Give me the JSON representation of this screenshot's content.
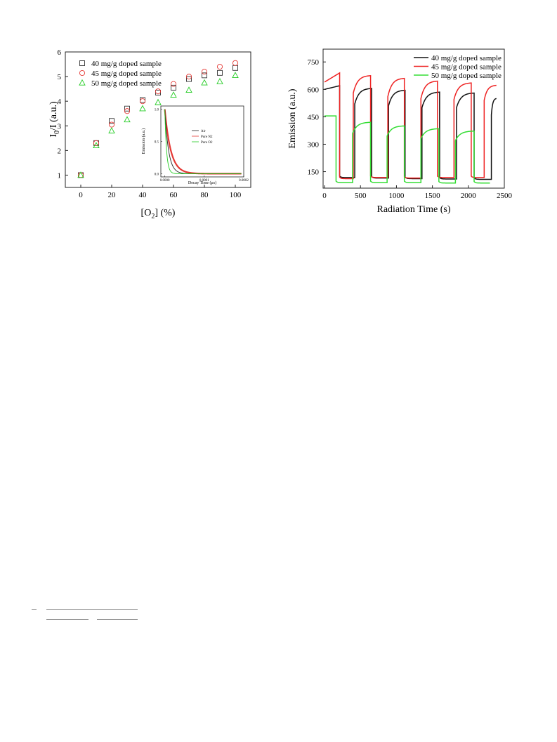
{
  "chart_data": [
    {
      "type": "scatter",
      "title": "",
      "xlabel": "[O2] (%)",
      "ylabel": "I0/I (a.u.)",
      "xlim": [
        -10,
        110
      ],
      "ylim": [
        0.5,
        6
      ],
      "x_ticks": [
        0,
        20,
        40,
        60,
        80,
        100
      ],
      "y_ticks": [
        1,
        2,
        3,
        4,
        5,
        6
      ],
      "legend_position": "top-left",
      "series": [
        {
          "name": "40 mg/g doped sample",
          "marker": "square",
          "color": "#333333",
          "x": [
            0,
            10,
            20,
            30,
            40,
            50,
            60,
            70,
            80,
            90,
            100
          ],
          "y": [
            1.0,
            2.3,
            3.2,
            3.7,
            4.05,
            4.35,
            4.55,
            4.9,
            5.05,
            5.15,
            5.35
          ]
        },
        {
          "name": "45 mg/g doped sample",
          "marker": "circle",
          "color": "#e53935",
          "x": [
            0,
            10,
            20,
            30,
            40,
            50,
            60,
            70,
            80,
            90,
            100
          ],
          "y": [
            1.0,
            2.3,
            3.05,
            3.6,
            4.0,
            4.4,
            4.7,
            5.0,
            5.2,
            5.4,
            5.55
          ]
        },
        {
          "name": "50 mg/g doped sample",
          "marker": "triangle",
          "color": "#22cc22",
          "x": [
            0,
            10,
            20,
            30,
            40,
            50,
            60,
            70,
            80,
            90,
            100
          ],
          "y": [
            1.0,
            2.2,
            2.8,
            3.25,
            3.7,
            3.95,
            4.25,
            4.45,
            4.75,
            4.8,
            5.05
          ]
        }
      ]
    },
    {
      "type": "line",
      "title": "",
      "xlabel": "Decay Time (μs)",
      "ylabel": "Emission (a.u.)",
      "inset": true,
      "xlim": [
        -1e-05,
        0.0002
      ],
      "ylim": [
        -0.05,
        1.05
      ],
      "x_ticks": [
        0.0,
        0.0001,
        0.0002
      ],
      "x_tick_labels": [
        "0.0000",
        "0.0001",
        "0.0002"
      ],
      "y_ticks": [
        0.0,
        0.5,
        1.0
      ],
      "y_tick_labels": [
        "0.0",
        "0.5",
        "1.0"
      ],
      "legend_position": "top-right",
      "series": [
        {
          "name": "Air",
          "color": "#222222",
          "tau": 9.5e-06
        },
        {
          "name": "Pure N2",
          "color": "#e53935",
          "tau": 1.5e-05
        },
        {
          "name": "Pure O2",
          "color": "#22cc22",
          "tau": 4.5e-06
        }
      ]
    },
    {
      "type": "line",
      "title": "",
      "xlabel": "Radiation Time (s)",
      "ylabel": "Emission (a.u.)",
      "xlim": [
        -20,
        2500
      ],
      "ylim": [
        60,
        820
      ],
      "x_ticks": [
        0,
        500,
        1000,
        1500,
        2000,
        2500
      ],
      "y_ticks": [
        150,
        300,
        450,
        600,
        750
      ],
      "legend_position": "top-right",
      "series": [
        {
          "name": "40 mg/g doped sample",
          "color": "#111111",
          "segments": [
            {
              "type": "high",
              "t0": 0,
              "t1": 210,
              "start": 600,
              "end": 620
            },
            {
              "type": "low",
              "t0": 210,
              "t1": 420,
              "level": 118
            },
            {
              "type": "rise",
              "t0": 420,
              "t1": 655,
              "start": 520,
              "end": 605
            },
            {
              "type": "low",
              "t0": 655,
              "t1": 890,
              "level": 115
            },
            {
              "type": "rise",
              "t0": 890,
              "t1": 1120,
              "start": 510,
              "end": 595
            },
            {
              "type": "low",
              "t0": 1120,
              "t1": 1355,
              "level": 112
            },
            {
              "type": "rise",
              "t0": 1355,
              "t1": 1600,
              "start": 500,
              "end": 585
            },
            {
              "type": "low",
              "t0": 1600,
              "t1": 1835,
              "level": 110
            },
            {
              "type": "rise",
              "t0": 1835,
              "t1": 2080,
              "start": 500,
              "end": 580
            },
            {
              "type": "low",
              "t0": 2080,
              "t1": 2320,
              "level": 108
            },
            {
              "type": "rise",
              "t0": 2320,
              "t1": 2390,
              "start": 460,
              "end": 550
            }
          ]
        },
        {
          "name": "45 mg/g doped sample",
          "color": "#ee2222",
          "segments": [
            {
              "type": "high",
              "t0": 0,
              "t1": 210,
              "start": 640,
              "end": 690
            },
            {
              "type": "low",
              "t0": 210,
              "t1": 400,
              "level": 112
            },
            {
              "type": "rise",
              "t0": 400,
              "t1": 640,
              "start": 580,
              "end": 675
            },
            {
              "type": "low",
              "t0": 640,
              "t1": 880,
              "level": 118
            },
            {
              "type": "rise",
              "t0": 880,
              "t1": 1110,
              "start": 560,
              "end": 660
            },
            {
              "type": "low",
              "t0": 1110,
              "t1": 1340,
              "level": 115
            },
            {
              "type": "rise",
              "t0": 1340,
              "t1": 1570,
              "start": 550,
              "end": 645
            },
            {
              "type": "low",
              "t0": 1570,
              "t1": 1800,
              "level": 118
            },
            {
              "type": "rise",
              "t0": 1800,
              "t1": 2040,
              "start": 545,
              "end": 635
            },
            {
              "type": "low",
              "t0": 2040,
              "t1": 2220,
              "level": 118
            },
            {
              "type": "rise",
              "t0": 2220,
              "t1": 2390,
              "start": 540,
              "end": 622
            }
          ]
        },
        {
          "name": "50 mg/g doped sample",
          "color": "#33dd33",
          "segments": [
            {
              "type": "high",
              "t0": 0,
              "t1": 160,
              "start": 455,
              "end": 455
            },
            {
              "type": "low",
              "t0": 160,
              "t1": 390,
              "level": 90
            },
            {
              "type": "rise",
              "t0": 390,
              "t1": 640,
              "start": 360,
              "end": 420
            },
            {
              "type": "low",
              "t0": 640,
              "t1": 870,
              "level": 90
            },
            {
              "type": "rise",
              "t0": 870,
              "t1": 1110,
              "start": 345,
              "end": 400
            },
            {
              "type": "low",
              "t0": 1110,
              "t1": 1340,
              "level": 90
            },
            {
              "type": "rise",
              "t0": 1340,
              "t1": 1590,
              "start": 330,
              "end": 385
            },
            {
              "type": "low",
              "t0": 1590,
              "t1": 1820,
              "level": 88
            },
            {
              "type": "rise",
              "t0": 1820,
              "t1": 2080,
              "start": 320,
              "end": 372
            },
            {
              "type": "low",
              "t0": 2080,
              "t1": 2300,
              "level": 88
            }
          ]
        }
      ]
    }
  ]
}
